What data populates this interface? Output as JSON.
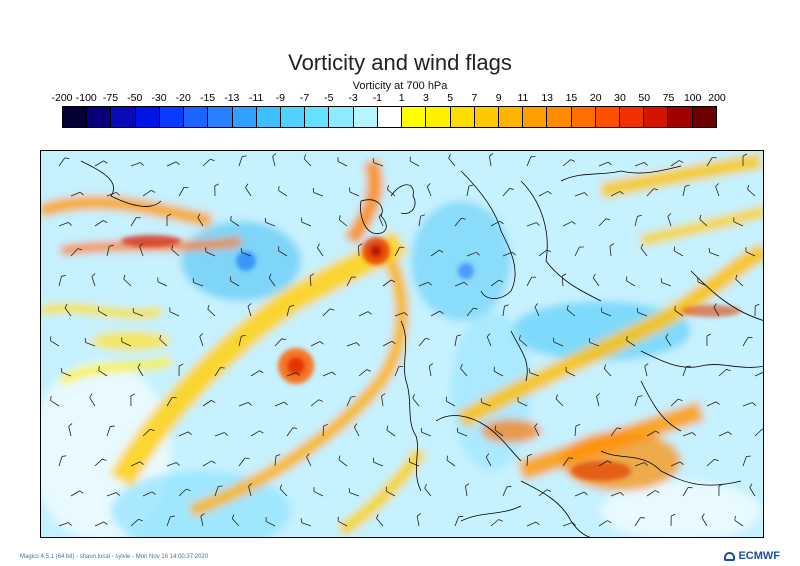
{
  "title": "Vorticity and wind flags",
  "subtitle": "Vorticity at 700 hPa",
  "legend": {
    "ticks": [
      "-200",
      "-100",
      "-75",
      "-50",
      "-30",
      "-20",
      "-15",
      "-13",
      "-11",
      "-9",
      "-7",
      "-5",
      "-3",
      "-1",
      "1",
      "3",
      "5",
      "7",
      "9",
      "11",
      "13",
      "15",
      "20",
      "30",
      "50",
      "75",
      "100",
      "200"
    ],
    "colors": [
      "#050033",
      "#08007a",
      "#0a0ab8",
      "#0014e6",
      "#0a3cff",
      "#1e64ff",
      "#2882ff",
      "#32a0ff",
      "#3cbeff",
      "#50d2ff",
      "#64e1ff",
      "#8cebff",
      "#b4f5ff",
      "#ffffff",
      "#ffff00",
      "#fff000",
      "#ffdc00",
      "#ffc800",
      "#ffb400",
      "#ffa000",
      "#ff8c00",
      "#ff6e00",
      "#ff5000",
      "#f03200",
      "#d21400",
      "#a00000",
      "#6e0000"
    ]
  },
  "footer": "Magics 4.5.1 (64 bit) - shaun.local - sylvie - Mon Nov 16 14:00:37 2020",
  "logo": "ECMWF",
  "colors": {
    "map_background": "#bfefff",
    "coastline": "#000000",
    "wind_flag": "#222222"
  }
}
